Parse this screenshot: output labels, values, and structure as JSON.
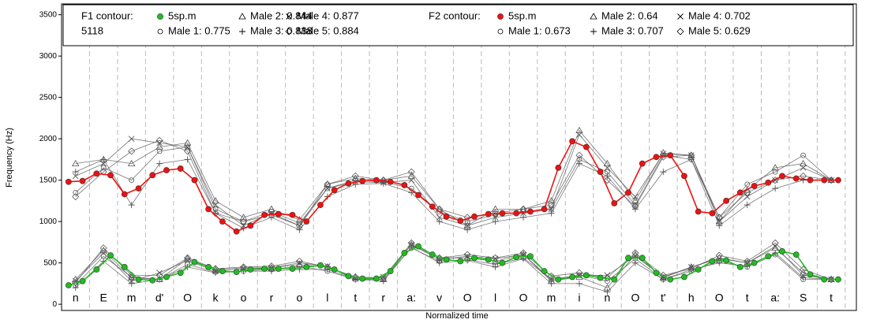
{
  "chart_data": {
    "type": "line",
    "ylabel": "Frequency (Hz)",
    "xlabel": "Normalized time",
    "ylim": [
      -75,
      3630
    ],
    "yticks": [
      0,
      500,
      1000,
      1500,
      2000,
      2500,
      3000,
      3500
    ],
    "xlim": [
      0,
      28.4
    ],
    "segments": [
      "n",
      "E",
      "m",
      "d'",
      "O",
      "k",
      "o",
      "r",
      "o",
      "l",
      "t",
      "r",
      "a:",
      "v",
      "O",
      "l",
      "O",
      "m",
      "i",
      "n",
      "O",
      "t'",
      "h",
      "O",
      "t",
      "a:",
      "S",
      "t"
    ],
    "groups": [
      {
        "title": "F1 contour:",
        "note": "5118",
        "series": [
          {
            "name": "5sp.m",
            "color": "#22bb22",
            "marker": "circle-filled",
            "x": [
              0.25,
              0.75,
              1.25,
              1.75,
              2.25,
              2.75,
              3.25,
              3.75,
              4.25,
              4.75,
              5.25,
              5.75,
              6.25,
              6.75,
              7.25,
              7.75,
              8.25,
              8.75,
              9.25,
              9.75,
              10.25,
              10.75,
              11.25,
              11.75,
              12.25,
              12.75,
              13.25,
              13.75,
              14.25,
              14.75,
              15.25,
              15.75,
              16.25,
              16.75,
              17.25,
              17.75,
              18.25,
              18.75,
              19.25,
              19.75,
              20.25,
              20.75,
              21.25,
              21.75,
              22.25,
              22.75,
              23.25,
              23.75,
              24.25,
              24.75,
              25.25,
              25.75,
              26.25,
              26.75,
              27.25,
              27.75
            ],
            "values": [
              230,
              280,
              420,
              590,
              450,
              300,
              290,
              330,
              380,
              510,
              450,
              400,
              390,
              420,
              430,
              430,
              430,
              450,
              470,
              420,
              340,
              310,
              310,
              400,
              620,
              700,
              600,
              540,
              520,
              560,
              540,
              500,
              570,
              580,
              400,
              300,
              330,
              350,
              320,
              300,
              560,
              560,
              380,
              300,
              330,
              420,
              520,
              530,
              450,
              500,
              580,
              640,
              600,
              360,
              300,
              300
            ]
          },
          {
            "name": "Male 1: 0.775",
            "color": "#555555",
            "marker": "circle",
            "x": [
              0.5,
              1.5,
              2.5,
              3.5,
              4.5,
              5.5,
              6.5,
              7.5,
              8.5,
              9.5,
              10.5,
              11.5,
              12.5,
              13.5,
              14.5,
              15.5,
              16.5,
              17.5,
              18.5,
              19.5,
              20.5,
              21.5,
              22.5,
              23.5,
              24.5,
              25.5,
              26.5,
              27.5
            ],
            "values": [
              230,
              580,
              330,
              300,
              480,
              390,
              400,
              420,
              460,
              400,
              300,
              300,
              680,
              520,
              540,
              480,
              560,
              300,
              350,
              280,
              550,
              300,
              400,
              520,
              450,
              600,
              300,
              300
            ]
          },
          {
            "name": "Male 2: 0.844",
            "color": "#555555",
            "marker": "triangle",
            "x": [
              0.5,
              1.5,
              2.5,
              3.5,
              4.5,
              5.5,
              6.5,
              7.5,
              8.5,
              9.5,
              10.5,
              11.5,
              12.5,
              13.5,
              14.5,
              15.5,
              16.5,
              17.5,
              18.5,
              19.5,
              20.5,
              21.5,
              22.5,
              23.5,
              24.5,
              25.5,
              26.5,
              27.5
            ],
            "values": [
              300,
              650,
              320,
              300,
              550,
              420,
              440,
              440,
              480,
              450,
              320,
              300,
              720,
              560,
              560,
              520,
              600,
              280,
              330,
              200,
              600,
              320,
              450,
              560,
              500,
              680,
              380,
              300
            ]
          },
          {
            "name": "Male 3: 0.838",
            "color": "#555555",
            "marker": "plus",
            "x": [
              0.5,
              1.5,
              2.5,
              3.5,
              4.5,
              5.5,
              6.5,
              7.5,
              8.5,
              9.5,
              10.5,
              11.5,
              12.5,
              13.5,
              14.5,
              15.5,
              16.5,
              17.5,
              18.5,
              19.5,
              20.5,
              21.5,
              22.5,
              23.5,
              24.5,
              25.5,
              26.5,
              27.5
            ],
            "values": [
              200,
              520,
              250,
              300,
              450,
              380,
              400,
              400,
              420,
              420,
              300,
              280,
              690,
              500,
              530,
              450,
              550,
              250,
              250,
              150,
              500,
              300,
              420,
              500,
              460,
              620,
              320,
              300
            ]
          },
          {
            "name": "Male 4: 0.877",
            "color": "#555555",
            "marker": "x",
            "x": [
              0.5,
              1.5,
              2.5,
              3.5,
              4.5,
              5.5,
              6.5,
              7.5,
              8.5,
              9.5,
              10.5,
              11.5,
              12.5,
              13.5,
              14.5,
              15.5,
              16.5,
              17.5,
              18.5,
              19.5,
              20.5,
              21.5,
              22.5,
              23.5,
              24.5,
              25.5,
              26.5,
              27.5
            ],
            "values": [
              280,
              620,
              280,
              380,
              530,
              400,
              430,
              440,
              500,
              460,
              310,
              330,
              720,
              540,
              580,
              550,
              600,
              300,
              350,
              350,
              580,
              330,
              450,
              550,
              500,
              700,
              350,
              300
            ]
          },
          {
            "name": "Male 5: 0.884",
            "color": "#555555",
            "marker": "diamond",
            "x": [
              0.5,
              1.5,
              2.5,
              3.5,
              4.5,
              5.5,
              6.5,
              7.5,
              8.5,
              9.5,
              10.5,
              11.5,
              12.5,
              13.5,
              14.5,
              15.5,
              16.5,
              17.5,
              18.5,
              19.5,
              20.5,
              21.5,
              22.5,
              23.5,
              24.5,
              25.5,
              26.5,
              27.5
            ],
            "values": [
              260,
              680,
              350,
              350,
              560,
              430,
              450,
              460,
              520,
              450,
              330,
              320,
              740,
              560,
              600,
              560,
              620,
              340,
              380,
              320,
              620,
              350,
              430,
              590,
              520,
              740,
              420,
              300
            ]
          }
        ]
      },
      {
        "title": "F2 contour:",
        "series": [
          {
            "name": "5sp.m",
            "color": "#ee1111",
            "marker": "circle-filled",
            "x": [
              0.25,
              0.75,
              1.25,
              1.75,
              2.25,
              2.75,
              3.25,
              3.75,
              4.25,
              4.75,
              5.25,
              5.75,
              6.25,
              6.75,
              7.25,
              7.75,
              8.25,
              8.75,
              9.25,
              9.75,
              10.25,
              10.75,
              11.25,
              11.75,
              12.25,
              12.75,
              13.25,
              13.75,
              14.25,
              14.75,
              15.25,
              15.75,
              16.25,
              16.75,
              17.25,
              17.75,
              18.25,
              18.75,
              19.25,
              19.75,
              20.25,
              20.75,
              21.25,
              21.75,
              22.25,
              22.75,
              23.25,
              23.75,
              24.25,
              24.75,
              25.25,
              25.75,
              26.25,
              26.75,
              27.25,
              27.75
            ],
            "values": [
              1480,
              1490,
              1580,
              1560,
              1330,
              1400,
              1560,
              1620,
              1640,
              1500,
              1150,
              1000,
              880,
              950,
              1080,
              1090,
              1080,
              1000,
              1200,
              1380,
              1460,
              1490,
              1500,
              1480,
              1440,
              1320,
              1180,
              1060,
              1010,
              1060,
              1090,
              1100,
              1100,
              1120,
              1150,
              1650,
              1970,
              1900,
              1600,
              1220,
              1350,
              1700,
              1780,
              1800,
              1550,
              1120,
              1100,
              1250,
              1350,
              1430,
              1470,
              1550,
              1520,
              1500,
              1500,
              1500
            ]
          },
          {
            "name": "Male 1: 0.673",
            "color": "#555555",
            "marker": "circle",
            "x": [
              0.5,
              1.5,
              2.5,
              3.5,
              4.5,
              5.5,
              6.5,
              7.5,
              8.5,
              9.5,
              10.5,
              11.5,
              12.5,
              13.5,
              14.5,
              15.5,
              16.5,
              17.5,
              18.5,
              19.5,
              20.5,
              21.5,
              22.5,
              23.5,
              24.5,
              25.5,
              26.5,
              27.5
            ],
            "values": [
              1350,
              1650,
              1500,
              1850,
              1900,
              1150,
              1000,
              1120,
              980,
              1400,
              1500,
              1480,
              1400,
              1120,
              1000,
              1080,
              1120,
              1150,
              1750,
              1600,
              1200,
              1800,
              1750,
              1050,
              1450,
              1600,
              1800,
              1500
            ]
          },
          {
            "name": "Male 2: 0.64",
            "color": "#555555",
            "marker": "triangle",
            "x": [
              0.5,
              1.5,
              2.5,
              3.5,
              4.5,
              5.5,
              6.5,
              7.5,
              8.5,
              9.5,
              10.5,
              11.5,
              12.5,
              13.5,
              14.5,
              15.5,
              16.5,
              17.5,
              18.5,
              19.5,
              20.5,
              21.5,
              22.5,
              23.5,
              24.5,
              25.5,
              26.5,
              27.5
            ],
            "values": [
              1700,
              1750,
              1700,
              1900,
              1950,
              1250,
              1050,
              1150,
              1020,
              1450,
              1520,
              1500,
              1550,
              1150,
              950,
              1150,
              1150,
              1250,
              2100,
              1700,
              1250,
              1830,
              1800,
              1000,
              1380,
              1650,
              1700,
              1500
            ]
          },
          {
            "name": "Male 3: 0.707",
            "color": "#555555",
            "marker": "plus",
            "x": [
              0.5,
              1.5,
              2.5,
              3.5,
              4.5,
              5.5,
              6.5,
              7.5,
              8.5,
              9.5,
              10.5,
              11.5,
              12.5,
              13.5,
              14.5,
              15.5,
              16.5,
              17.5,
              18.5,
              19.5,
              20.5,
              21.5,
              22.5,
              23.5,
              24.5,
              25.5,
              26.5,
              27.5
            ],
            "values": [
              1600,
              1750,
              1200,
              1700,
              1750,
              1100,
              920,
              1050,
              900,
              1300,
              1450,
              1460,
              1350,
              1000,
              900,
              1000,
              1050,
              1100,
              1700,
              1550,
              1150,
              1600,
              1750,
              950,
              1200,
              1400,
              1500,
              1500
            ]
          },
          {
            "name": "Male 4: 0.702",
            "color": "#555555",
            "marker": "x",
            "x": [
              0.5,
              1.5,
              2.5,
              3.5,
              4.5,
              5.5,
              6.5,
              7.5,
              8.5,
              9.5,
              10.5,
              11.5,
              12.5,
              13.5,
              14.5,
              15.5,
              16.5,
              17.5,
              18.5,
              19.5,
              20.5,
              21.5,
              22.5,
              23.5,
              24.5,
              25.5,
              26.5,
              27.5
            ],
            "values": [
              1550,
              1700,
              2000,
              1950,
              1900,
              1200,
              950,
              1100,
              950,
              1400,
              1480,
              1470,
              1500,
              1050,
              950,
              1050,
              1100,
              1150,
              2050,
              1650,
              1300,
              1820,
              1800,
              1000,
              1300,
              1500,
              1650,
              1500
            ]
          },
          {
            "name": "Male 5: 0.629",
            "color": "#555555",
            "marker": "diamond",
            "x": [
              0.5,
              1.5,
              2.5,
              3.5,
              4.5,
              5.5,
              6.5,
              7.5,
              8.5,
              9.5,
              10.5,
              11.5,
              12.5,
              13.5,
              14.5,
              15.5,
              16.5,
              17.5,
              18.5,
              19.5,
              20.5,
              21.5,
              22.5,
              23.5,
              24.5,
              25.5,
              26.5,
              27.5
            ],
            "values": [
              1300,
              1600,
              1850,
              1980,
              1850,
              1100,
              1000,
              1080,
              950,
              1450,
              1550,
              1500,
              1600,
              1150,
              1050,
              1100,
              1150,
              1200,
              1800,
              1500,
              1180,
              1780,
              1800,
              1050,
              1350,
              1500,
              1550,
              1500
            ]
          }
        ]
      }
    ]
  }
}
